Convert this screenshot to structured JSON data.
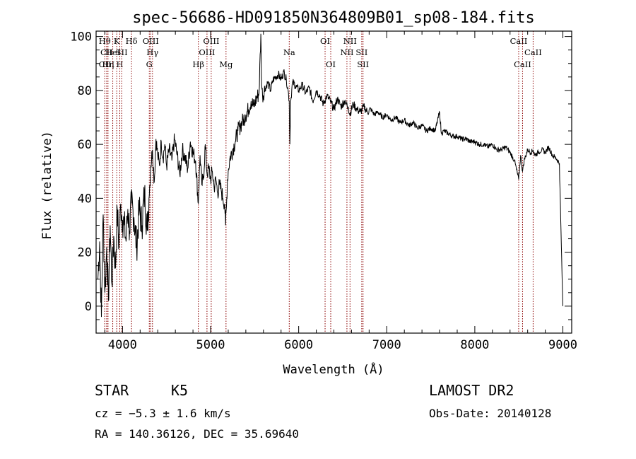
{
  "chart_data": {
    "type": "line",
    "title": "spec-56686-HD091850N364809B01_sp08-184.fits",
    "xlabel": "Wavelength (Å)",
    "ylabel": "Flux (relative)",
    "xlim": [
      3700,
      9100
    ],
    "ylim": [
      -10,
      102
    ],
    "xticks": [
      4000,
      5000,
      6000,
      7000,
      8000,
      9000
    ],
    "yticks": [
      0,
      20,
      40,
      60,
      80,
      100
    ],
    "series": [
      {
        "name": "flux",
        "x": [
          3720,
          3740,
          3760,
          3780,
          3800,
          3820,
          3840,
          3860,
          3880,
          3900,
          3920,
          3940,
          3960,
          3980,
          4000,
          4020,
          4040,
          4060,
          4080,
          4100,
          4130,
          4160,
          4190,
          4220,
          4250,
          4280,
          4300,
          4320,
          4340,
          4360,
          4380,
          4400,
          4420,
          4440,
          4460,
          4480,
          4500,
          4530,
          4560,
          4590,
          4620,
          4650,
          4680,
          4710,
          4740,
          4770,
          4800,
          4830,
          4860,
          4880,
          4900,
          4920,
          4940,
          4960,
          4980,
          5000,
          5020,
          5040,
          5060,
          5080,
          5100,
          5120,
          5140,
          5160,
          5170,
          5180,
          5190,
          5200,
          5220,
          5250,
          5280,
          5310,
          5340,
          5370,
          5400,
          5430,
          5460,
          5490,
          5520,
          5550,
          5570,
          5580,
          5590,
          5620,
          5650,
          5680,
          5710,
          5740,
          5770,
          5800,
          5830,
          5860,
          5880,
          5893,
          5900,
          5910,
          5930,
          5960,
          6000,
          6040,
          6080,
          6120,
          6160,
          6200,
          6240,
          6280,
          6320,
          6360,
          6400,
          6440,
          6480,
          6520,
          6563,
          6580,
          6620,
          6660,
          6700,
          6740,
          6780,
          6820,
          6860,
          6900,
          6950,
          7000,
          7050,
          7100,
          7150,
          7200,
          7250,
          7300,
          7350,
          7400,
          7450,
          7500,
          7550,
          7600,
          7620,
          7650,
          7700,
          7750,
          7800,
          7850,
          7900,
          7950,
          8000,
          8050,
          8100,
          8150,
          8200,
          8250,
          8300,
          8350,
          8400,
          8450,
          8498,
          8520,
          8542,
          8560,
          8600,
          8640,
          8662,
          8680,
          8720,
          8760,
          8800,
          8840,
          8880,
          8920,
          8960,
          8990,
          9000
        ],
        "y": [
          10,
          24,
          -4,
          34,
          5,
          22,
          2,
          30,
          8,
          26,
          14,
          36,
          22,
          38,
          32,
          30,
          24,
          36,
          28,
          38,
          33,
          22,
          36,
          30,
          42,
          28,
          40,
          52,
          58,
          46,
          62,
          56,
          52,
          61,
          55,
          60,
          52,
          58,
          54,
          62,
          56,
          49,
          58,
          55,
          51,
          61,
          57,
          54,
          38,
          56,
          45,
          48,
          60,
          49,
          51,
          47,
          50,
          44,
          47,
          42,
          45,
          43,
          40,
          38,
          30,
          37,
          46,
          50,
          55,
          58,
          61,
          65,
          67,
          69,
          71,
          73,
          76,
          74,
          77,
          79,
          101,
          82,
          78,
          81,
          83,
          80,
          84,
          85,
          86,
          84,
          87,
          84,
          80,
          76,
          60,
          76,
          83,
          82,
          80,
          82,
          79,
          81,
          76,
          80,
          78,
          75,
          78,
          76,
          73,
          77,
          74,
          76,
          74,
          71,
          75,
          73,
          72,
          74,
          72,
          73,
          71,
          72,
          70,
          71,
          69,
          70,
          68,
          69,
          67,
          68,
          66,
          67,
          65,
          66,
          65,
          72,
          64,
          65,
          64,
          63,
          63,
          62,
          62,
          61,
          61,
          60,
          60,
          59,
          60,
          58,
          58,
          59,
          57,
          54,
          47,
          56,
          50,
          54,
          58,
          57,
          58,
          56,
          57,
          58,
          57,
          59,
          56,
          55,
          53,
          12,
          0
        ]
      }
    ],
    "spectral_lines": [
      {
        "label": "Hθ",
        "wavelength": 3798,
        "row": 1
      },
      {
        "label": "CII",
        "wavelength": 3820,
        "row": 2
      },
      {
        "label": "CIII",
        "wavelength": 3820,
        "row": 3
      },
      {
        "label": "Hη",
        "wavelength": 3835,
        "row": 3
      },
      {
        "label": "HeI",
        "wavelength": 3889,
        "row": 2
      },
      {
        "label": "K",
        "wavelength": 3934,
        "row": 1
      },
      {
        "label": "H",
        "wavelength": 3969,
        "row": 3
      },
      {
        "label": "SII",
        "wavelength": 3990,
        "row": 2
      },
      {
        "label": "Hδ",
        "wavelength": 4102,
        "row": 1
      },
      {
        "label": "OIII",
        "wavelength": 4320,
        "row": 1
      },
      {
        "label": "Hγ",
        "wavelength": 4340,
        "row": 2
      },
      {
        "label": "G",
        "wavelength": 4304,
        "row": 3
      },
      {
        "label": "Hβ",
        "wavelength": 4861,
        "row": 3
      },
      {
        "label": "OIII",
        "wavelength": 5007,
        "row": 1
      },
      {
        "label": "OIII",
        "wavelength": 4959,
        "row": 2
      },
      {
        "label": "Mg",
        "wavelength": 5175,
        "row": 3
      },
      {
        "label": "Na",
        "wavelength": 5893,
        "row": 2
      },
      {
        "label": "OI",
        "wavelength": 6300,
        "row": 1
      },
      {
        "label": "OI",
        "wavelength": 6364,
        "row": 3
      },
      {
        "label": "NII",
        "wavelength": 6583,
        "row": 1
      },
      {
        "label": "NII",
        "wavelength": 6548,
        "row": 2
      },
      {
        "label": "SII",
        "wavelength": 6716,
        "row": 2
      },
      {
        "label": "SII",
        "wavelength": 6731,
        "row": 3
      },
      {
        "label": "CaII",
        "wavelength": 8498,
        "row": 1
      },
      {
        "label": "CaII",
        "wavelength": 8662,
        "row": 2
      },
      {
        "label": "CaII",
        "wavelength": 8542,
        "row": 3
      }
    ]
  },
  "info": {
    "object_class": "STAR",
    "subclass": "K5",
    "cz": "cz = −5.3 ± 1.6 km/s",
    "coords": "RA = 140.36126, DEC =  35.69640",
    "survey": "LAMOST DR2",
    "obs_date": "Obs-Date: 20140128"
  },
  "colors": {
    "line_marker": "#8b0000",
    "spectrum": "#000000",
    "axes": "#000000"
  }
}
